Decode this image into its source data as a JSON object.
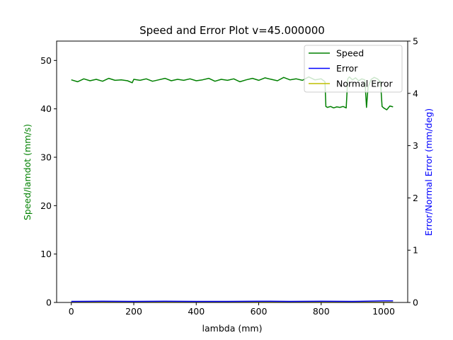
{
  "chart_data": {
    "type": "line",
    "title": "Speed and Error Plot v=45.000000",
    "xlabel": "lambda (mm)",
    "ylabel_left": "Speed/lamdot (mm/s)",
    "ylabel_right": "Error/Normal Error (mm/deg)",
    "xlim": [
      -47,
      1077
    ],
    "ylim_left": [
      0,
      54
    ],
    "ylim_right": [
      0,
      5
    ],
    "x_ticks": [
      0,
      200,
      400,
      600,
      800,
      1000
    ],
    "y_ticks_left": [
      0,
      10,
      20,
      30,
      40,
      50
    ],
    "y_ticks_right": [
      0,
      1,
      2,
      3,
      4,
      5
    ],
    "legend_position": "top-right",
    "grid": false,
    "colors": {
      "speed": "#008000",
      "error": "#0000ff",
      "normal_error": "#bfbf00",
      "left_label": "#008000",
      "right_label": "#0000ff"
    },
    "series": [
      {
        "name": "Speed",
        "axis": "left",
        "color": "#008000",
        "x": [
          0,
          20,
          40,
          60,
          80,
          100,
          120,
          140,
          160,
          180,
          195,
          200,
          220,
          240,
          260,
          280,
          300,
          320,
          340,
          360,
          380,
          400,
          420,
          440,
          460,
          480,
          500,
          520,
          540,
          560,
          580,
          600,
          620,
          640,
          660,
          680,
          700,
          720,
          740,
          760,
          780,
          800,
          812,
          815,
          820,
          830,
          840,
          850,
          860,
          870,
          880,
          885,
          890,
          900,
          910,
          920,
          930,
          940,
          945,
          950,
          960,
          970,
          980,
          990,
          995,
          1000,
          1010,
          1020,
          1030
        ],
        "y": [
          46.0,
          45.6,
          46.2,
          45.8,
          46.1,
          45.7,
          46.3,
          45.9,
          46.0,
          45.8,
          45.4,
          46.1,
          45.9,
          46.2,
          45.7,
          46.0,
          46.3,
          45.8,
          46.1,
          45.9,
          46.2,
          45.8,
          46.0,
          46.3,
          45.7,
          46.1,
          45.9,
          46.2,
          45.6,
          46.0,
          46.3,
          45.9,
          46.4,
          46.1,
          45.8,
          46.5,
          46.0,
          46.2,
          45.9,
          46.6,
          46.0,
          46.2,
          45.6,
          40.5,
          40.3,
          40.5,
          40.2,
          40.4,
          40.3,
          40.5,
          40.2,
          46.2,
          46.6,
          46.0,
          46.4,
          45.8,
          46.2,
          46.0,
          40.3,
          44.5,
          46.1,
          46.5,
          46.2,
          45.6,
          40.5,
          40.2,
          39.8,
          40.6,
          40.4
        ]
      },
      {
        "name": "Error",
        "axis": "right",
        "color": "#0000ff",
        "x": [
          0,
          100,
          200,
          300,
          400,
          500,
          600,
          700,
          800,
          900,
          1000,
          1030
        ],
        "y": [
          0.02,
          0.025,
          0.02,
          0.025,
          0.02,
          0.02,
          0.025,
          0.02,
          0.025,
          0.02,
          0.03,
          0.03
        ]
      },
      {
        "name": "Normal Error",
        "axis": "right",
        "color": "#bfbf00",
        "x": [
          0,
          100,
          200,
          300,
          400,
          500,
          600,
          700,
          800,
          850,
          880,
          900,
          1000,
          1030
        ],
        "y": [
          0.005,
          0.005,
          0.005,
          0.006,
          0.005,
          0.008,
          0.01,
          0.008,
          0.01,
          0.012,
          0.01,
          0.008,
          0.006,
          0.005
        ]
      }
    ]
  }
}
